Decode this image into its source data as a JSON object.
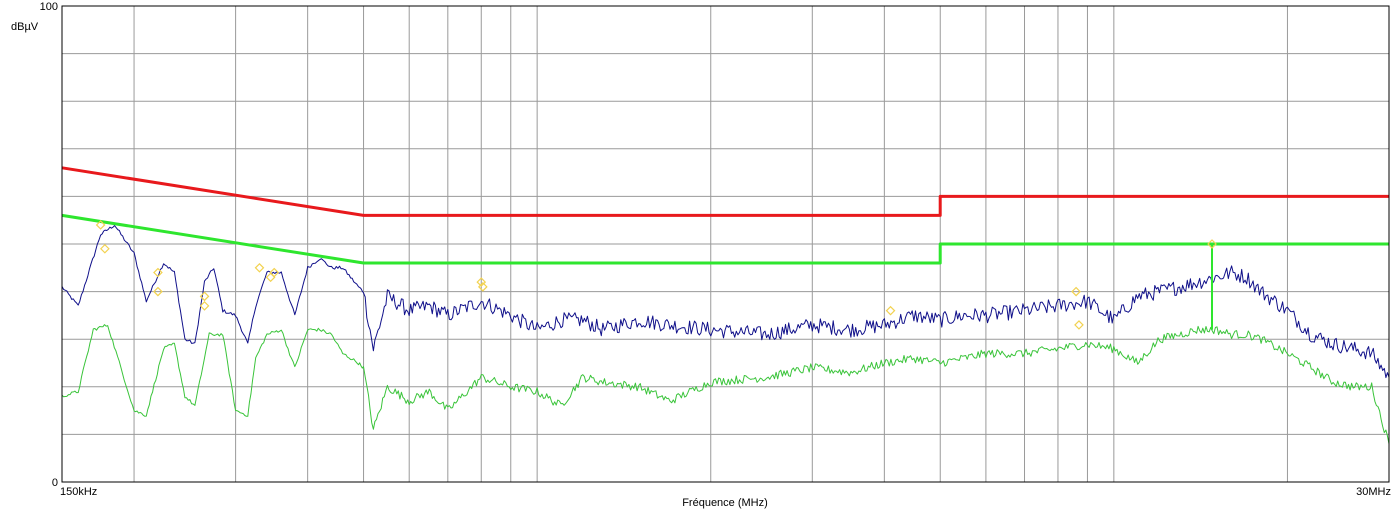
{
  "chart_data": {
    "type": "line",
    "title": "",
    "xlabel": "Fréquence (MHz)",
    "ylabel": "dBµV",
    "x_scale": "log",
    "xlim": [
      0.15,
      30
    ],
    "ylim": [
      0,
      100
    ],
    "x_tick_labels": [
      {
        "value": 0.15,
        "label": "150kHz"
      },
      {
        "value": 30,
        "label": "30MHz"
      }
    ],
    "y_tick_labels": [
      {
        "value": 100,
        "label": "100"
      },
      {
        "value": 0,
        "label": "0"
      }
    ],
    "y_grid_step": 10,
    "x_grid_values": [
      0.2,
      0.3,
      0.4,
      0.5,
      0.6,
      0.7,
      0.8,
      0.9,
      1,
      2,
      3,
      4,
      5,
      6,
      7,
      8,
      9,
      10,
      20
    ],
    "grid": true,
    "legend": "none",
    "series": [
      {
        "color": "#e8191c",
        "style": "limit",
        "x": [
          0.15,
          0.5,
          0.5,
          5,
          5,
          30
        ],
        "y": [
          66,
          56,
          56,
          56,
          60,
          60
        ]
      },
      {
        "color": "#2ee62e",
        "style": "limit",
        "x": [
          0.15,
          0.5,
          0.5,
          5,
          5,
          30
        ],
        "y": [
          56,
          46,
          46,
          46,
          50,
          50
        ]
      },
      {
        "color": "#10108a",
        "style": "trace",
        "x": [
          0.15,
          0.16,
          0.175,
          0.185,
          0.2,
          0.21,
          0.225,
          0.235,
          0.245,
          0.255,
          0.265,
          0.275,
          0.285,
          0.3,
          0.315,
          0.325,
          0.34,
          0.36,
          0.38,
          0.4,
          0.42,
          0.44,
          0.46,
          0.49,
          0.5,
          0.52,
          0.55,
          0.6,
          0.65,
          0.7,
          0.8,
          0.9,
          1.0,
          1.1,
          1.2,
          1.3,
          1.5,
          1.7,
          2,
          2.5,
          3,
          3.5,
          4,
          4.5,
          5,
          5.5,
          6,
          7,
          8,
          9,
          10,
          11,
          12,
          13,
          14,
          15,
          16,
          17,
          18,
          19,
          20,
          22,
          24,
          26,
          28,
          30
        ],
        "y": [
          41,
          37,
          52,
          54,
          48,
          38,
          46,
          44,
          30,
          29,
          42,
          45,
          36,
          35,
          29,
          37,
          44,
          44,
          35,
          45,
          47,
          45,
          45,
          41,
          40,
          28,
          39,
          36,
          37,
          35,
          38,
          35,
          32,
          34,
          34,
          32,
          34,
          33,
          32,
          31,
          33,
          32,
          33,
          35,
          34,
          35,
          35,
          36,
          37,
          38,
          34,
          39,
          40,
          41,
          42,
          43,
          44,
          43,
          40,
          38,
          36,
          31,
          29,
          28,
          27,
          22
        ],
        "peaks": [
          {
            "x": 0.175,
            "y": 54
          },
          {
            "x": 0.178,
            "y": 49
          },
          {
            "x": 0.22,
            "y": 44
          },
          {
            "x": 0.22,
            "y": 40
          },
          {
            "x": 0.265,
            "y": 39
          },
          {
            "x": 0.265,
            "y": 37
          },
          {
            "x": 0.33,
            "y": 45
          },
          {
            "x": 0.35,
            "y": 44
          },
          {
            "x": 0.345,
            "y": 43
          },
          {
            "x": 0.8,
            "y": 42
          },
          {
            "x": 0.805,
            "y": 41
          },
          {
            "x": 4.1,
            "y": 36
          },
          {
            "x": 8.6,
            "y": 40
          },
          {
            "x": 8.7,
            "y": 33
          },
          {
            "x": 14.8,
            "y": 50
          }
        ]
      },
      {
        "color": "#3ac43a",
        "style": "trace",
        "x": [
          0.15,
          0.16,
          0.17,
          0.18,
          0.2,
          0.21,
          0.225,
          0.235,
          0.245,
          0.255,
          0.27,
          0.285,
          0.3,
          0.315,
          0.325,
          0.34,
          0.36,
          0.38,
          0.4,
          0.42,
          0.44,
          0.46,
          0.49,
          0.5,
          0.52,
          0.55,
          0.6,
          0.65,
          0.7,
          0.8,
          0.9,
          1.0,
          1.1,
          1.2,
          1.3,
          1.5,
          1.7,
          2,
          2.5,
          3,
          3.5,
          4,
          4.5,
          5,
          5.5,
          6,
          7,
          8,
          9,
          10,
          11,
          12,
          13,
          14,
          15,
          16,
          17,
          18,
          20,
          22,
          24,
          26,
          28,
          30
        ],
        "y": [
          18,
          19,
          32,
          33,
          15,
          14,
          28,
          29,
          18,
          16,
          31,
          31,
          15,
          14,
          26,
          31,
          32,
          24,
          32,
          32,
          31,
          27,
          25,
          24,
          11,
          20,
          17,
          19,
          15,
          22,
          20,
          19,
          16,
          22,
          21,
          20,
          17,
          21,
          22,
          24,
          23,
          25,
          26,
          25,
          26,
          27,
          27,
          28,
          29,
          28,
          25,
          30,
          31,
          32,
          32,
          31,
          31,
          30,
          27,
          24,
          21,
          20,
          20,
          8
        ]
      },
      {
        "color": "#2ee62e",
        "style": "spike",
        "x": [
          14.8,
          14.8
        ],
        "y": [
          32,
          50
        ]
      }
    ]
  }
}
